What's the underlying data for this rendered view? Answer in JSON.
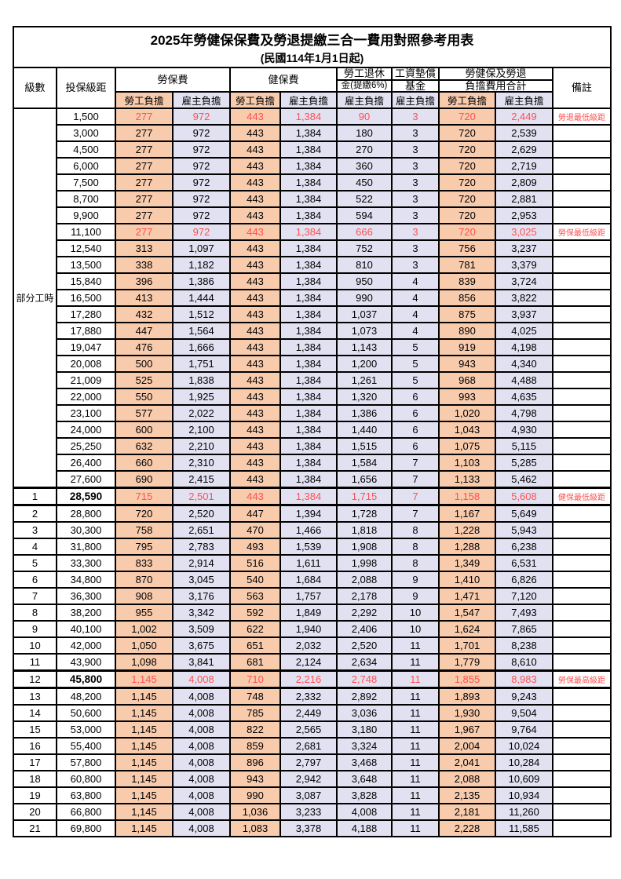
{
  "title": "2025年勞健保保費及勞退提繳三合一費用對照參考用表",
  "subtitle": "(民國114年1月1日起)",
  "colors": {
    "employee_col_bg": "#F8CBAD",
    "employer_col_bg": "#E2E1F2",
    "highlight_text": "#FF5050",
    "border": "#000000"
  },
  "header": {
    "level": "級數",
    "bracket": "投保級距",
    "labor_group": "勞保費",
    "health_group": "健保費",
    "pension_line1": "勞工退休",
    "pension_line2": "金(提繳6%)",
    "fund_line1": "工資墊償",
    "fund_line2": "基金",
    "total_line1": "勞健保及勞退",
    "total_line2": "負擔費用合計",
    "note": "備註",
    "employee": "勞工負擔",
    "employer": "雇主負擔"
  },
  "part_time_label": "部分工時",
  "rows": [
    {
      "group": "part_time",
      "level": "",
      "bracket": "1,500",
      "labor_emp": "277",
      "labor_er": "972",
      "health_emp": "443",
      "health_er": "1,384",
      "pension_er": "90",
      "fund_er": "3",
      "total_emp": "720",
      "total_er": "2,449",
      "note": "勞退最低級距",
      "red": true,
      "strong": false
    },
    {
      "group": "part_time",
      "level": "",
      "bracket": "3,000",
      "labor_emp": "277",
      "labor_er": "972",
      "health_emp": "443",
      "health_er": "1,384",
      "pension_er": "180",
      "fund_er": "3",
      "total_emp": "720",
      "total_er": "2,539",
      "note": "",
      "red": false,
      "strong": false
    },
    {
      "group": "part_time",
      "level": "",
      "bracket": "4,500",
      "labor_emp": "277",
      "labor_er": "972",
      "health_emp": "443",
      "health_er": "1,384",
      "pension_er": "270",
      "fund_er": "3",
      "total_emp": "720",
      "total_er": "2,629",
      "note": "",
      "red": false,
      "strong": false
    },
    {
      "group": "part_time",
      "level": "",
      "bracket": "6,000",
      "labor_emp": "277",
      "labor_er": "972",
      "health_emp": "443",
      "health_er": "1,384",
      "pension_er": "360",
      "fund_er": "3",
      "total_emp": "720",
      "total_er": "2,719",
      "note": "",
      "red": false,
      "strong": false
    },
    {
      "group": "part_time",
      "level": "",
      "bracket": "7,500",
      "labor_emp": "277",
      "labor_er": "972",
      "health_emp": "443",
      "health_er": "1,384",
      "pension_er": "450",
      "fund_er": "3",
      "total_emp": "720",
      "total_er": "2,809",
      "note": "",
      "red": false,
      "strong": false
    },
    {
      "group": "part_time",
      "level": "",
      "bracket": "8,700",
      "labor_emp": "277",
      "labor_er": "972",
      "health_emp": "443",
      "health_er": "1,384",
      "pension_er": "522",
      "fund_er": "3",
      "total_emp": "720",
      "total_er": "2,881",
      "note": "",
      "red": false,
      "strong": false
    },
    {
      "group": "part_time",
      "level": "",
      "bracket": "9,900",
      "labor_emp": "277",
      "labor_er": "972",
      "health_emp": "443",
      "health_er": "1,384",
      "pension_er": "594",
      "fund_er": "3",
      "total_emp": "720",
      "total_er": "2,953",
      "note": "",
      "red": false,
      "strong": false
    },
    {
      "group": "part_time",
      "level": "",
      "bracket": "11,100",
      "labor_emp": "277",
      "labor_er": "972",
      "health_emp": "443",
      "health_er": "1,384",
      "pension_er": "666",
      "fund_er": "3",
      "total_emp": "720",
      "total_er": "3,025",
      "note": "勞保最低級距",
      "red": true,
      "strong": false
    },
    {
      "group": "part_time",
      "level": "",
      "bracket": "12,540",
      "labor_emp": "313",
      "labor_er": "1,097",
      "health_emp": "443",
      "health_er": "1,384",
      "pension_er": "752",
      "fund_er": "3",
      "total_emp": "756",
      "total_er": "3,237",
      "note": "",
      "red": false,
      "strong": false
    },
    {
      "group": "part_time",
      "level": "",
      "bracket": "13,500",
      "labor_emp": "338",
      "labor_er": "1,182",
      "health_emp": "443",
      "health_er": "1,384",
      "pension_er": "810",
      "fund_er": "3",
      "total_emp": "781",
      "total_er": "3,379",
      "note": "",
      "red": false,
      "strong": false
    },
    {
      "group": "part_time",
      "level": "",
      "bracket": "15,840",
      "labor_emp": "396",
      "labor_er": "1,386",
      "health_emp": "443",
      "health_er": "1,384",
      "pension_er": "950",
      "fund_er": "4",
      "total_emp": "839",
      "total_er": "3,724",
      "note": "",
      "red": false,
      "strong": false
    },
    {
      "group": "part_time",
      "level": "",
      "bracket": "16,500",
      "labor_emp": "413",
      "labor_er": "1,444",
      "health_emp": "443",
      "health_er": "1,384",
      "pension_er": "990",
      "fund_er": "4",
      "total_emp": "856",
      "total_er": "3,822",
      "note": "",
      "red": false,
      "strong": false
    },
    {
      "group": "part_time",
      "level": "",
      "bracket": "17,280",
      "labor_emp": "432",
      "labor_er": "1,512",
      "health_emp": "443",
      "health_er": "1,384",
      "pension_er": "1,037",
      "fund_er": "4",
      "total_emp": "875",
      "total_er": "3,937",
      "note": "",
      "red": false,
      "strong": false
    },
    {
      "group": "part_time",
      "level": "",
      "bracket": "17,880",
      "labor_emp": "447",
      "labor_er": "1,564",
      "health_emp": "443",
      "health_er": "1,384",
      "pension_er": "1,073",
      "fund_er": "4",
      "total_emp": "890",
      "total_er": "4,025",
      "note": "",
      "red": false,
      "strong": false
    },
    {
      "group": "part_time",
      "level": "",
      "bracket": "19,047",
      "labor_emp": "476",
      "labor_er": "1,666",
      "health_emp": "443",
      "health_er": "1,384",
      "pension_er": "1,143",
      "fund_er": "5",
      "total_emp": "919",
      "total_er": "4,198",
      "note": "",
      "red": false,
      "strong": false
    },
    {
      "group": "part_time",
      "level": "",
      "bracket": "20,008",
      "labor_emp": "500",
      "labor_er": "1,751",
      "health_emp": "443",
      "health_er": "1,384",
      "pension_er": "1,200",
      "fund_er": "5",
      "total_emp": "943",
      "total_er": "4,340",
      "note": "",
      "red": false,
      "strong": false
    },
    {
      "group": "part_time",
      "level": "",
      "bracket": "21,009",
      "labor_emp": "525",
      "labor_er": "1,838",
      "health_emp": "443",
      "health_er": "1,384",
      "pension_er": "1,261",
      "fund_er": "5",
      "total_emp": "968",
      "total_er": "4,488",
      "note": "",
      "red": false,
      "strong": false
    },
    {
      "group": "part_time",
      "level": "",
      "bracket": "22,000",
      "labor_emp": "550",
      "labor_er": "1,925",
      "health_emp": "443",
      "health_er": "1,384",
      "pension_er": "1,320",
      "fund_er": "6",
      "total_emp": "993",
      "total_er": "4,635",
      "note": "",
      "red": false,
      "strong": false
    },
    {
      "group": "part_time",
      "level": "",
      "bracket": "23,100",
      "labor_emp": "577",
      "labor_er": "2,022",
      "health_emp": "443",
      "health_er": "1,384",
      "pension_er": "1,386",
      "fund_er": "6",
      "total_emp": "1,020",
      "total_er": "4,798",
      "note": "",
      "red": false,
      "strong": false
    },
    {
      "group": "part_time",
      "level": "",
      "bracket": "24,000",
      "labor_emp": "600",
      "labor_er": "2,100",
      "health_emp": "443",
      "health_er": "1,384",
      "pension_er": "1,440",
      "fund_er": "6",
      "total_emp": "1,043",
      "total_er": "4,930",
      "note": "",
      "red": false,
      "strong": false
    },
    {
      "group": "part_time",
      "level": "",
      "bracket": "25,250",
      "labor_emp": "632",
      "labor_er": "2,210",
      "health_emp": "443",
      "health_er": "1,384",
      "pension_er": "1,515",
      "fund_er": "6",
      "total_emp": "1,075",
      "total_er": "5,115",
      "note": "",
      "red": false,
      "strong": false
    },
    {
      "group": "part_time",
      "level": "",
      "bracket": "26,400",
      "labor_emp": "660",
      "labor_er": "2,310",
      "health_emp": "443",
      "health_er": "1,384",
      "pension_er": "1,584",
      "fund_er": "7",
      "total_emp": "1,103",
      "total_er": "5,285",
      "note": "",
      "red": false,
      "strong": false
    },
    {
      "group": "part_time",
      "level": "",
      "bracket": "27,600",
      "labor_emp": "690",
      "labor_er": "2,415",
      "health_emp": "443",
      "health_er": "1,384",
      "pension_er": "1,656",
      "fund_er": "7",
      "total_emp": "1,133",
      "total_er": "5,462",
      "note": "",
      "red": false,
      "strong": false
    },
    {
      "group": "level",
      "level": "1",
      "bracket": "28,590",
      "labor_emp": "715",
      "labor_er": "2,501",
      "health_emp": "443",
      "health_er": "1,384",
      "pension_er": "1,715",
      "fund_er": "7",
      "total_emp": "1,158",
      "total_er": "5,608",
      "note": "健保最低級距",
      "red": true,
      "strong": true
    },
    {
      "group": "level",
      "level": "2",
      "bracket": "28,800",
      "labor_emp": "720",
      "labor_er": "2,520",
      "health_emp": "447",
      "health_er": "1,394",
      "pension_er": "1,728",
      "fund_er": "7",
      "total_emp": "1,167",
      "total_er": "5,649",
      "note": "",
      "red": false,
      "strong": false
    },
    {
      "group": "level",
      "level": "3",
      "bracket": "30,300",
      "labor_emp": "758",
      "labor_er": "2,651",
      "health_emp": "470",
      "health_er": "1,466",
      "pension_er": "1,818",
      "fund_er": "8",
      "total_emp": "1,228",
      "total_er": "5,943",
      "note": "",
      "red": false,
      "strong": false
    },
    {
      "group": "level",
      "level": "4",
      "bracket": "31,800",
      "labor_emp": "795",
      "labor_er": "2,783",
      "health_emp": "493",
      "health_er": "1,539",
      "pension_er": "1,908",
      "fund_er": "8",
      "total_emp": "1,288",
      "total_er": "6,238",
      "note": "",
      "red": false,
      "strong": false
    },
    {
      "group": "level",
      "level": "5",
      "bracket": "33,300",
      "labor_emp": "833",
      "labor_er": "2,914",
      "health_emp": "516",
      "health_er": "1,611",
      "pension_er": "1,998",
      "fund_er": "8",
      "total_emp": "1,349",
      "total_er": "6,531",
      "note": "",
      "red": false,
      "strong": false
    },
    {
      "group": "level",
      "level": "6",
      "bracket": "34,800",
      "labor_emp": "870",
      "labor_er": "3,045",
      "health_emp": "540",
      "health_er": "1,684",
      "pension_er": "2,088",
      "fund_er": "9",
      "total_emp": "1,410",
      "total_er": "6,826",
      "note": "",
      "red": false,
      "strong": false
    },
    {
      "group": "level",
      "level": "7",
      "bracket": "36,300",
      "labor_emp": "908",
      "labor_er": "3,176",
      "health_emp": "563",
      "health_er": "1,757",
      "pension_er": "2,178",
      "fund_er": "9",
      "total_emp": "1,471",
      "total_er": "7,120",
      "note": "",
      "red": false,
      "strong": false
    },
    {
      "group": "level",
      "level": "8",
      "bracket": "38,200",
      "labor_emp": "955",
      "labor_er": "3,342",
      "health_emp": "592",
      "health_er": "1,849",
      "pension_er": "2,292",
      "fund_er": "10",
      "total_emp": "1,547",
      "total_er": "7,493",
      "note": "",
      "red": false,
      "strong": false
    },
    {
      "group": "level",
      "level": "9",
      "bracket": "40,100",
      "labor_emp": "1,002",
      "labor_er": "3,509",
      "health_emp": "622",
      "health_er": "1,940",
      "pension_er": "2,406",
      "fund_er": "10",
      "total_emp": "1,624",
      "total_er": "7,865",
      "note": "",
      "red": false,
      "strong": false
    },
    {
      "group": "level",
      "level": "10",
      "bracket": "42,000",
      "labor_emp": "1,050",
      "labor_er": "3,675",
      "health_emp": "651",
      "health_er": "2,032",
      "pension_er": "2,520",
      "fund_er": "11",
      "total_emp": "1,701",
      "total_er": "8,238",
      "note": "",
      "red": false,
      "strong": false
    },
    {
      "group": "level",
      "level": "11",
      "bracket": "43,900",
      "labor_emp": "1,098",
      "labor_er": "3,841",
      "health_emp": "681",
      "health_er": "2,124",
      "pension_er": "2,634",
      "fund_er": "11",
      "total_emp": "1,779",
      "total_er": "8,610",
      "note": "",
      "red": false,
      "strong": false
    },
    {
      "group": "level",
      "level": "12",
      "bracket": "45,800",
      "labor_emp": "1,145",
      "labor_er": "4,008",
      "health_emp": "710",
      "health_er": "2,216",
      "pension_er": "2,748",
      "fund_er": "11",
      "total_emp": "1,855",
      "total_er": "8,983",
      "note": "勞保最高級距",
      "red": true,
      "strong": true
    },
    {
      "group": "level",
      "level": "13",
      "bracket": "48,200",
      "labor_emp": "1,145",
      "labor_er": "4,008",
      "health_emp": "748",
      "health_er": "2,332",
      "pension_er": "2,892",
      "fund_er": "11",
      "total_emp": "1,893",
      "total_er": "9,243",
      "note": "",
      "red": false,
      "strong": false
    },
    {
      "group": "level",
      "level": "14",
      "bracket": "50,600",
      "labor_emp": "1,145",
      "labor_er": "4,008",
      "health_emp": "785",
      "health_er": "2,449",
      "pension_er": "3,036",
      "fund_er": "11",
      "total_emp": "1,930",
      "total_er": "9,504",
      "note": "",
      "red": false,
      "strong": false
    },
    {
      "group": "level",
      "level": "15",
      "bracket": "53,000",
      "labor_emp": "1,145",
      "labor_er": "4,008",
      "health_emp": "822",
      "health_er": "2,565",
      "pension_er": "3,180",
      "fund_er": "11",
      "total_emp": "1,967",
      "total_er": "9,764",
      "note": "",
      "red": false,
      "strong": false
    },
    {
      "group": "level",
      "level": "16",
      "bracket": "55,400",
      "labor_emp": "1,145",
      "labor_er": "4,008",
      "health_emp": "859",
      "health_er": "2,681",
      "pension_er": "3,324",
      "fund_er": "11",
      "total_emp": "2,004",
      "total_er": "10,024",
      "note": "",
      "red": false,
      "strong": false
    },
    {
      "group": "level",
      "level": "17",
      "bracket": "57,800",
      "labor_emp": "1,145",
      "labor_er": "4,008",
      "health_emp": "896",
      "health_er": "2,797",
      "pension_er": "3,468",
      "fund_er": "11",
      "total_emp": "2,041",
      "total_er": "10,284",
      "note": "",
      "red": false,
      "strong": false
    },
    {
      "group": "level",
      "level": "18",
      "bracket": "60,800",
      "labor_emp": "1,145",
      "labor_er": "4,008",
      "health_emp": "943",
      "health_er": "2,942",
      "pension_er": "3,648",
      "fund_er": "11",
      "total_emp": "2,088",
      "total_er": "10,609",
      "note": "",
      "red": false,
      "strong": false
    },
    {
      "group": "level",
      "level": "19",
      "bracket": "63,800",
      "labor_emp": "1,145",
      "labor_er": "4,008",
      "health_emp": "990",
      "health_er": "3,087",
      "pension_er": "3,828",
      "fund_er": "11",
      "total_emp": "2,135",
      "total_er": "10,934",
      "note": "",
      "red": false,
      "strong": false
    },
    {
      "group": "level",
      "level": "20",
      "bracket": "66,800",
      "labor_emp": "1,145",
      "labor_er": "4,008",
      "health_emp": "1,036",
      "health_er": "3,233",
      "pension_er": "4,008",
      "fund_er": "11",
      "total_emp": "2,181",
      "total_er": "11,260",
      "note": "",
      "red": false,
      "strong": false
    },
    {
      "group": "level",
      "level": "21",
      "bracket": "69,800",
      "labor_emp": "1,145",
      "labor_er": "4,008",
      "health_emp": "1,083",
      "health_er": "3,378",
      "pension_er": "4,188",
      "fund_er": "11",
      "total_emp": "2,228",
      "total_er": "11,585",
      "note": "",
      "red": false,
      "strong": false
    }
  ]
}
